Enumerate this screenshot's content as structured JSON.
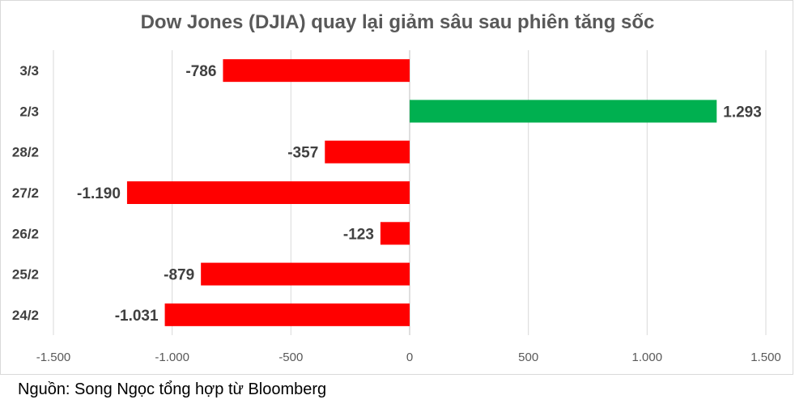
{
  "chart_data": {
    "type": "bar",
    "orientation": "horizontal",
    "title": "Dow Jones (DJIA) quay lại giảm sâu sau phiên tăng sốc",
    "categories": [
      "3/3",
      "2/3",
      "28/2",
      "27/2",
      "26/2",
      "25/2",
      "24/2"
    ],
    "values": [
      -786,
      1293,
      -357,
      -1190,
      -123,
      -879,
      -1031
    ],
    "value_labels": [
      "-786",
      "1.293",
      "-357",
      "-1.190",
      "-123",
      "-879",
      "-1.031"
    ],
    "xlim": [
      -1500,
      1500
    ],
    "ticks": [
      -1500,
      -1000,
      -500,
      0,
      500,
      1000,
      1500
    ],
    "tick_labels": [
      "-1.500",
      "-1.000",
      "-500",
      "0",
      "500",
      "1.000",
      "1.500"
    ],
    "grid": true,
    "legend": "none",
    "colors": {
      "positive": "#00b050",
      "negative": "#ff0000"
    }
  },
  "source": "Nguồn: Song Ngọc tổng hợp từ Bloomberg"
}
